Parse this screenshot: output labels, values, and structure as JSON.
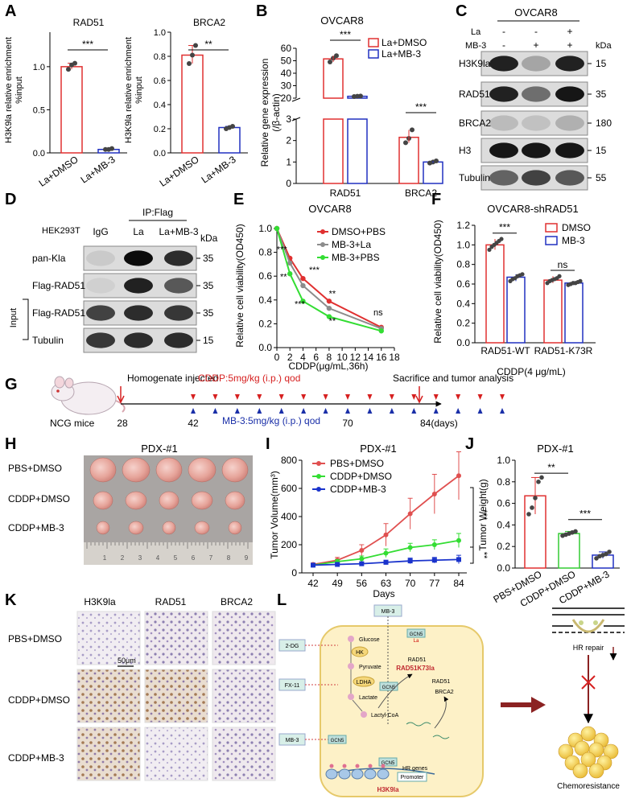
{
  "panels": {
    "A": {
      "letter": "A",
      "ylabel": "H3K9la relative enrichment %input",
      "groups": [
        "La+DMSO",
        "La+MB-3"
      ],
      "charts": [
        {
          "title": "RAD51",
          "sig": "***",
          "values": [
            1.0,
            0.04
          ],
          "points": [
            [
              0.97,
              1.02,
              1.04
            ],
            [
              0.04,
              0.04,
              0.05
            ]
          ],
          "ylim": [
            0,
            1.4
          ],
          "ticks": [
            "0.0",
            "0.5",
            "1.0"
          ],
          "tickvals": [
            0,
            0.5,
            1.0
          ]
        },
        {
          "title": "BRCA2",
          "sig": "**",
          "values": [
            0.81,
            0.21
          ],
          "points": [
            [
              0.74,
              0.81,
              0.89
            ],
            [
              0.2,
              0.21,
              0.22
            ]
          ],
          "ylim": [
            0,
            1.0
          ],
          "ticks": [
            "0.0",
            "0.2",
            "0.4",
            "0.6",
            "0.8",
            "1.0"
          ],
          "tickvals": [
            0,
            0.2,
            0.4,
            0.6,
            0.8,
            1.0
          ]
        }
      ]
    },
    "B": {
      "letter": "B",
      "title": "OVCAR8",
      "ylabel": "Relative gene expression (/β-actin)",
      "legend": [
        "La+DMSO",
        "La+MB-3"
      ],
      "categories": [
        "RAD51",
        "BRCA2"
      ],
      "sig": [
        "***",
        "***"
      ],
      "upper_ticks": [
        "20",
        "30",
        "40",
        "50",
        "60"
      ],
      "lower_ticks": [
        "0",
        "1",
        "2",
        "3"
      ]
    },
    "C": {
      "letter": "C",
      "cell": "OVCAR8",
      "row_la": "La",
      "row_mb": "MB-3",
      "la_signs": [
        "-",
        "-",
        "+"
      ],
      "mb_signs": [
        "-",
        "+",
        "+"
      ],
      "kda": "kDa",
      "bands": [
        {
          "name": "H3K9la",
          "kda": "15"
        },
        {
          "name": "RAD51",
          "kda": "35"
        },
        {
          "name": "BRCA2",
          "kda": "180"
        },
        {
          "name": "H3",
          "kda": "15"
        },
        {
          "name": "Tubulin",
          "kda": "55"
        }
      ]
    },
    "D": {
      "letter": "D",
      "cell": "HEK293T",
      "ip": "IP:Flag",
      "lanes": [
        "IgG",
        "La",
        "La+MB-3"
      ],
      "kda": "kDa",
      "input_label": "Input",
      "bands": [
        {
          "name": "pan-Kla",
          "kda": "35"
        },
        {
          "name": "Flag-RAD51",
          "kda": "35"
        },
        {
          "name": "Flag-RAD51",
          "kda": "35"
        },
        {
          "name": "Tubulin",
          "kda": "15"
        }
      ]
    },
    "E": {
      "letter": "E",
      "title": "OVCAR8",
      "ylabel": "Relative cell viability(OD450)",
      "xlabel": "CDDP(μg/mL,36h)",
      "xticks": [
        "0",
        "2",
        "4",
        "6",
        "8",
        "10",
        "12",
        "14",
        "16",
        "18"
      ],
      "yticks": [
        "0.0",
        "0.2",
        "0.4",
        "0.6",
        "0.8",
        "1.0"
      ],
      "annotations": [
        "***",
        "***",
        "**",
        "***",
        "**",
        "**",
        "ns"
      ]
    },
    "F": {
      "letter": "F",
      "title": "OVCAR8-shRAD51",
      "ylabel": "Relative cell viability(OD450)",
      "xlabel": "CDDP(4 μg/mL)",
      "categories": [
        "RAD51-WT",
        "RAD51-K73R"
      ],
      "legend": [
        "DMSO",
        "MB-3"
      ],
      "sig": [
        "***",
        "ns"
      ],
      "yticks": [
        "0.0",
        "0.2",
        "0.4",
        "0.6",
        "0.8",
        "1.0",
        "1.2"
      ]
    },
    "G": {
      "letter": "G",
      "homogenate": "Homogenate injected",
      "cddp": "CDDP:5mg/kg (i.p.) qod",
      "sacrifice": "Sacrifice and tumor analysis",
      "mb3": "MB-3:5mg/kg (i.p.) qod",
      "mice": "NCG mice",
      "days": [
        "28",
        "42",
        "70",
        "84(days)"
      ]
    },
    "H": {
      "letter": "H",
      "title": "PDX-#1",
      "rows": [
        "PBS+DMSO",
        "CDDP+DMSO",
        "CDDP+MB-3"
      ]
    },
    "I": {
      "letter": "I",
      "title": "PDX-#1",
      "ylabel": "Tumor Volume(mm³)",
      "xlabel": "Days",
      "yticks": [
        "0",
        "200",
        "400",
        "600",
        "800"
      ],
      "sig": [
        "***",
        "**"
      ]
    },
    "J": {
      "letter": "J",
      "title": "PDX-#1",
      "ylabel": "Tumor Weight(g)",
      "yticks": [
        "0.0",
        "0.2",
        "0.4",
        "0.6",
        "0.8",
        "1.0"
      ],
      "sig": [
        "**",
        "***"
      ]
    },
    "K": {
      "letter": "K",
      "columns": [
        "H3K9la",
        "RAD51",
        "BRCA2"
      ],
      "rows": [
        "PBS+DMSO",
        "CDDP+DMSO",
        "CDDP+MB-3"
      ],
      "scale": "50μm"
    },
    "L": {
      "letter": "L",
      "mb3_top": "MB-3",
      "glucose": "Glucose",
      "hk": "HK",
      "pyruvate": "Pyruvate",
      "ldha": "LDHA",
      "lactate": "Lactate",
      "lactylcoa": "Lactyl-CoA",
      "gcn5_a": "GCN5",
      "gcn5_b": "GCN5",
      "gcn5_c": "GCN5",
      "gcn5_d": "GCN5",
      "la": "La",
      "rad51_a": "RAD51",
      "rad51k73la": "RAD51K73la",
      "rad51_b": "RAD51",
      "brca2": "BRCA2",
      "dg": "2-DG",
      "fx": "FX-11",
      "mb3_b": "MB-3",
      "hrgenes": "HR genes",
      "promoter": "Promoter",
      "h3k9la": "H3K9la",
      "hrrepair": "HR repair",
      "chemo": "Chemoresistance"
    }
  },
  "chart_data": [
    {
      "type": "bar",
      "panel": "A-RAD51",
      "title": "RAD51",
      "categories": [
        "La+DMSO",
        "La+MB-3"
      ],
      "values": [
        1.0,
        0.04
      ],
      "ylabel": "H3K9la relative enrichment %input",
      "ylim": [
        0,
        1.4
      ]
    },
    {
      "type": "bar",
      "panel": "A-BRCA2",
      "title": "BRCA2",
      "categories": [
        "La+DMSO",
        "La+MB-3"
      ],
      "values": [
        0.81,
        0.21
      ],
      "ylabel": "H3K9la relative enrichment %input",
      "ylim": [
        0,
        1.0
      ]
    },
    {
      "type": "bar",
      "panel": "B",
      "title": "OVCAR8",
      "categories": [
        "RAD51",
        "BRCA2"
      ],
      "series": [
        {
          "name": "La+DMSO",
          "values": [
            51.5,
            2.15
          ],
          "points": [
            [
              49,
              52,
              54
            ],
            [
              1.9,
              2.1,
              2.5
            ]
          ]
        },
        {
          "name": "La+MB-3",
          "values": [
            21.5,
            1.0
          ],
          "points": [
            [
              21.3,
              21.5,
              21.7
            ],
            [
              0.95,
              1.0,
              1.05
            ]
          ]
        }
      ],
      "ylabel": "Relative gene expression (/β-actin)",
      "ylim": [
        0,
        60
      ]
    },
    {
      "type": "line",
      "panel": "E",
      "title": "OVCAR8",
      "x": [
        0,
        2,
        4,
        8,
        16
      ],
      "series": [
        {
          "name": "DMSO+PBS",
          "values": [
            1.0,
            0.75,
            0.58,
            0.39,
            0.17
          ],
          "color": "#e03030"
        },
        {
          "name": "MB-3+La",
          "values": [
            1.0,
            0.71,
            0.52,
            0.33,
            0.16
          ],
          "color": "#8c8c8c"
        },
        {
          "name": "MB-3+PBS",
          "values": [
            1.0,
            0.62,
            0.39,
            0.26,
            0.14
          ],
          "color": "#33dd33"
        }
      ],
      "xlabel": "CDDP(μg/mL,36h)",
      "ylabel": "Relative cell viability(OD450)",
      "xlim": [
        0,
        18
      ],
      "ylim": [
        0,
        1.0
      ]
    },
    {
      "type": "bar",
      "panel": "F",
      "title": "OVCAR8-shRAD51",
      "categories": [
        "RAD51-WT",
        "RAD51-K73R"
      ],
      "series": [
        {
          "name": "DMSO",
          "values": [
            1.0,
            0.64
          ],
          "points": [
            [
              0.95,
              0.98,
              1.0,
              1.02,
              1.04,
              1.06
            ],
            [
              0.61,
              0.63,
              0.64,
              0.65,
              0.66,
              0.68
            ]
          ]
        },
        {
          "name": "MB-3",
          "values": [
            0.67,
            0.61
          ],
          "points": [
            [
              0.63,
              0.65,
              0.66,
              0.68,
              0.69,
              0.7
            ],
            [
              0.59,
              0.6,
              0.61,
              0.61,
              0.62,
              0.63
            ]
          ]
        }
      ],
      "xlabel": "CDDP(4 μg/mL)",
      "ylabel": "Relative cell viability(OD450)",
      "ylim": [
        0,
        1.2
      ]
    },
    {
      "type": "line",
      "panel": "I",
      "title": "PDX-#1",
      "x": [
        42,
        49,
        56,
        63,
        70,
        77,
        84
      ],
      "series": [
        {
          "name": "PBS+DMSO",
          "values": [
            60,
            90,
            160,
            270,
            420,
            560,
            690
          ],
          "err": [
            10,
            20,
            40,
            80,
            110,
            140,
            170
          ],
          "color": "#e05050"
        },
        {
          "name": "CDDP+DMSO",
          "values": [
            55,
            80,
            100,
            140,
            180,
            200,
            230
          ],
          "err": [
            10,
            15,
            20,
            30,
            30,
            35,
            50
          ],
          "color": "#33dd33"
        },
        {
          "name": "CDDP+MB-3",
          "values": [
            55,
            60,
            65,
            75,
            85,
            90,
            95
          ],
          "err": [
            8,
            10,
            10,
            15,
            20,
            20,
            30
          ],
          "color": "#1a33cc"
        }
      ],
      "xlabel": "Days",
      "ylabel": "Tumor Volume(mm³)",
      "ylim": [
        0,
        800
      ]
    },
    {
      "type": "bar",
      "panel": "J",
      "title": "PDX-#1",
      "categories": [
        "PBS+DMSO",
        "CDDP+DMSO",
        "CDDP+MB-3"
      ],
      "values": [
        0.67,
        0.32,
        0.12
      ],
      "points": [
        [
          0.5,
          0.56,
          0.65,
          0.8,
          0.84
        ],
        [
          0.3,
          0.31,
          0.32,
          0.33,
          0.34
        ],
        [
          0.09,
          0.11,
          0.12,
          0.13,
          0.15
        ]
      ],
      "ylabel": "Tumor Weight(g)",
      "ylim": [
        0,
        1.0
      ]
    }
  ]
}
